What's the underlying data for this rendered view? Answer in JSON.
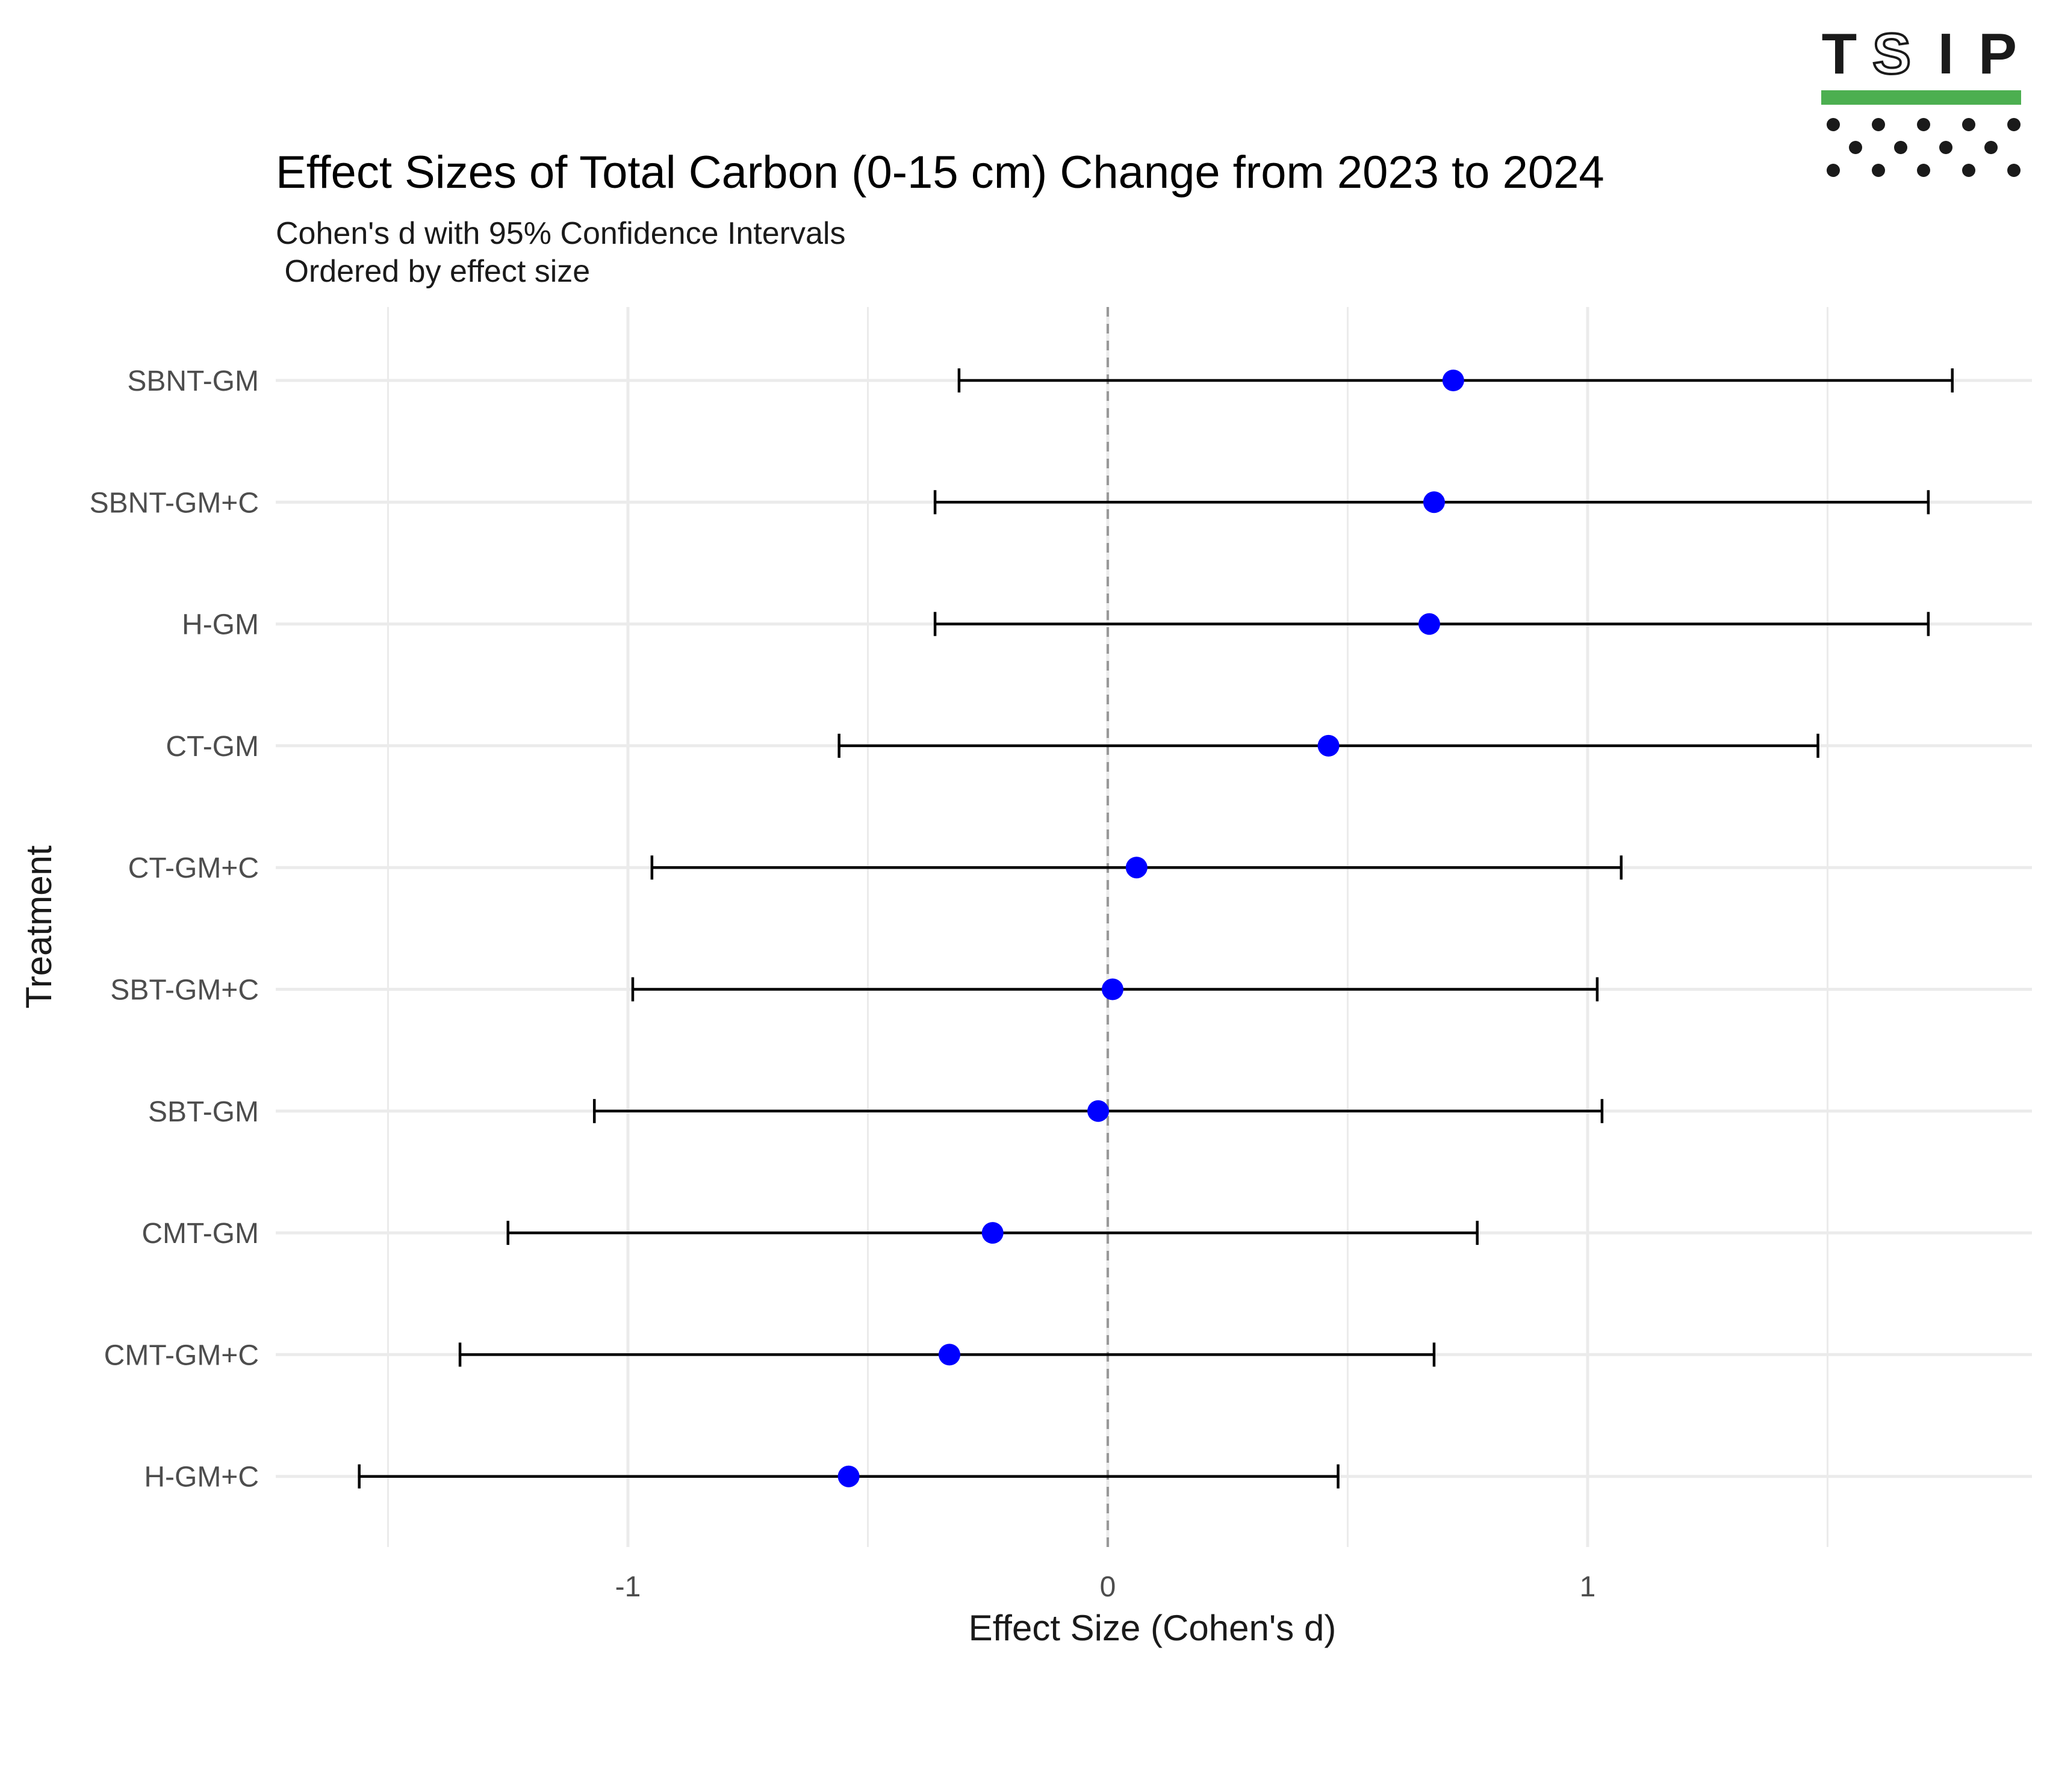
{
  "logo": {
    "letters": [
      "T",
      "S",
      "I",
      "P"
    ],
    "bar_color": "#4caf50",
    "dot_color": "#1a1a1a"
  },
  "colors": {
    "point": "#0000ff",
    "errorbar": "#000000",
    "reference_line": "#999999",
    "grid": "#ebebeb"
  },
  "chart_data": {
    "type": "scatter",
    "title": "Effect Sizes of Total Carbon (0-15 cm) Change from 2023 to 2024",
    "subtitle_lines": [
      "Cohen's d with 95% Confidence Intervals",
      " Ordered by effect size"
    ],
    "xlabel": "Effect Size (Cohen's d)",
    "ylabel": "Treatment",
    "xlim": [
      -1.75,
      1.9
    ],
    "x_ticks": [
      -1,
      0,
      1
    ],
    "x_tick_labels": [
      "-1",
      "0",
      "1"
    ],
    "x_minor_gridlines": [
      -1.5,
      -0.5,
      0.5,
      1.5
    ],
    "reference_line": 0,
    "reference_line_style": "dashed",
    "grid": true,
    "categories": [
      "SBNT-GM",
      "SBNT-GM+C",
      "H-GM",
      "CT-GM",
      "CT-GM+C",
      "SBT-GM+C",
      "SBT-GM",
      "CMT-GM",
      "CMT-GM+C",
      "H-GM+C"
    ],
    "series": [
      {
        "estimate": [
          0.72,
          0.68,
          0.67,
          0.46,
          0.06,
          0.01,
          -0.02,
          -0.24,
          -0.33,
          -0.54
        ],
        "ci_lower": [
          -0.31,
          -0.36,
          -0.36,
          -0.56,
          -0.95,
          -0.99,
          -1.07,
          -1.25,
          -1.35,
          -1.56
        ],
        "ci_upper": [
          1.76,
          1.71,
          1.71,
          1.48,
          1.07,
          1.02,
          1.03,
          0.77,
          0.68,
          0.48
        ]
      }
    ]
  }
}
